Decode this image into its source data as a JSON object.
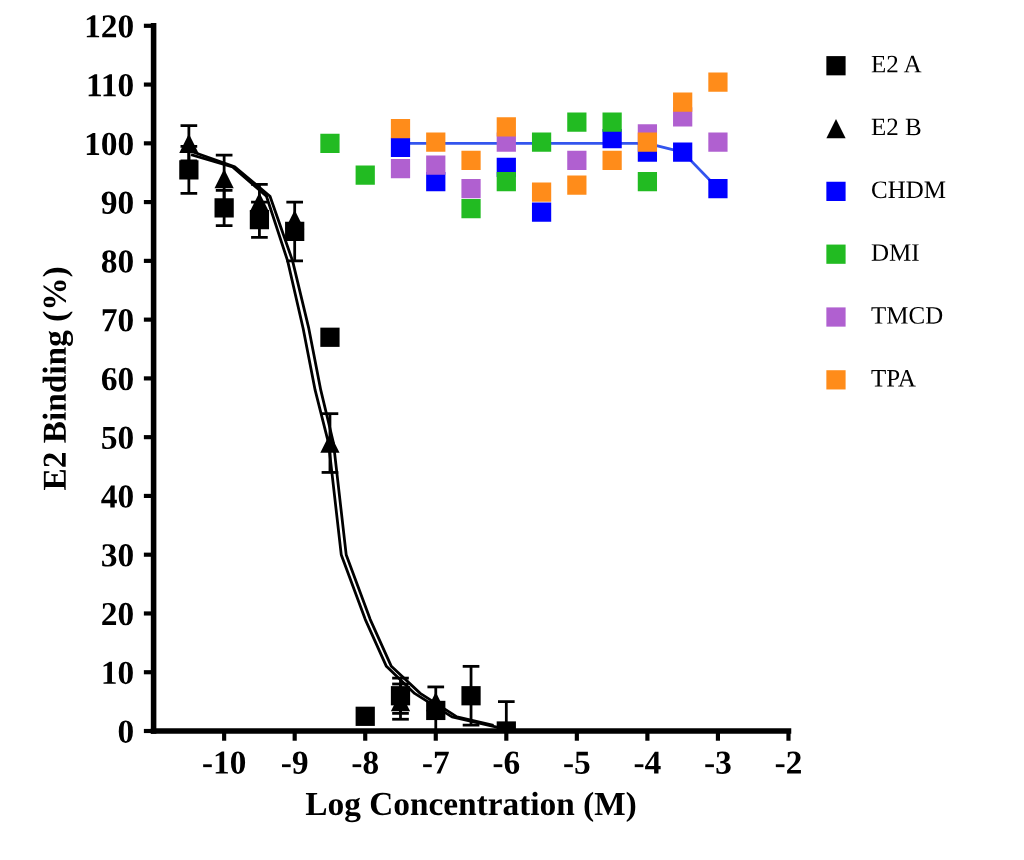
{
  "chart_data": {
    "type": "scatter",
    "xlabel": "Log Concentration (M)",
    "ylabel": "E2 Binding (%)",
    "xlim": [
      -11,
      -2
    ],
    "xticks": [
      -10,
      -9,
      -8,
      -7,
      -6,
      -5,
      -4,
      -3,
      -2
    ],
    "ylim": [
      0,
      120
    ],
    "yticks": [
      0,
      10,
      20,
      30,
      40,
      50,
      60,
      70,
      80,
      90,
      100,
      110,
      120
    ],
    "grid": false,
    "legend": "right",
    "series": [
      {
        "type": "line",
        "marker": "none",
        "color": "#000000",
        "x": [
          -10.45,
          -9.88,
          -9.4,
          -9.1,
          -8.88,
          -8.71,
          -8.52,
          -8.34,
          -8.0,
          -7.7,
          -7.3,
          -6.77,
          -6.0
        ],
        "values": [
          98,
          96,
          91,
          80,
          68.5,
          58,
          49,
          30,
          19,
          11,
          6.4,
          2.4,
          0.3
        ]
      },
      {
        "type": "line",
        "marker": "none",
        "color": "#000000",
        "x": [
          -10.55,
          -9.85,
          -9.35,
          -9.03,
          -8.8,
          -8.63,
          -8.45,
          -8.27,
          -7.93,
          -7.63,
          -7.22,
          -6.7,
          -6.2
        ],
        "values": [
          99,
          96,
          91,
          80,
          68.5,
          58,
          49,
          30,
          19,
          11,
          6.4,
          2.4,
          1
        ]
      },
      {
        "type": "line",
        "marker": "none",
        "color": "#3355ee",
        "x": [
          -7.5,
          -4,
          -3.5,
          -3
        ],
        "values": [
          100,
          100,
          98.5,
          92.3
        ]
      },
      {
        "name": "E2 A",
        "marker": "square",
        "color": "#000000",
        "x": [
          -10.5,
          -10,
          -9.5,
          -9,
          -8.5,
          -8,
          -7.5,
          -7,
          -6.5,
          -6
        ],
        "values": [
          95.5,
          89,
          87,
          85,
          67,
          2.5,
          6,
          3.5,
          6,
          0
        ],
        "errors": [
          4,
          3,
          3,
          5,
          null,
          null,
          3,
          4,
          5,
          [
            0,
            5
          ]
        ]
      },
      {
        "name": "E2 B",
        "marker": "triangle",
        "color": "#000000",
        "x": [
          -10.5,
          -10,
          -9.5,
          -9,
          -8.5,
          -7.5,
          -7
        ],
        "values": [
          100,
          94,
          90,
          87,
          49,
          5,
          5
        ],
        "errors": [
          3,
          4,
          3,
          null,
          5,
          3,
          null
        ]
      },
      {
        "name": "CHDM",
        "marker": "square",
        "color": "#0000ff",
        "x": [
          -7.5,
          -7,
          -6,
          -5.5,
          -4.5,
          -4,
          -3.5,
          -3
        ],
        "values": [
          99.3,
          93.5,
          95.9,
          88.3,
          100.8,
          98.5,
          98.5,
          92.3
        ]
      },
      {
        "name": "DMI",
        "marker": "square",
        "color": "#22bb22",
        "x": [
          -8.5,
          -8,
          -6.5,
          -6,
          -5.5,
          -5,
          -4.5,
          -4
        ],
        "values": [
          100,
          94.6,
          88.9,
          93.5,
          100.2,
          103.6,
          103.6,
          93.5
        ]
      },
      {
        "name": "TMCD",
        "marker": "square",
        "color": "#b060d0",
        "x": [
          -7.5,
          -7,
          -6.5,
          -6,
          -5,
          -4,
          -3.5,
          -3
        ],
        "values": [
          95.7,
          96.3,
          92.3,
          100.2,
          97.1,
          101.6,
          104.5,
          100.2
        ]
      },
      {
        "name": "TPA",
        "marker": "square",
        "color": "#ff8c1a",
        "x": [
          -7.5,
          -7,
          -6.5,
          -6,
          -5.5,
          -5,
          -4.5,
          -4,
          -3.5,
          -3
        ],
        "values": [
          102.5,
          100.2,
          97.1,
          102.8,
          91.7,
          92.9,
          97.1,
          100.2,
          107,
          110.4
        ]
      }
    ]
  }
}
